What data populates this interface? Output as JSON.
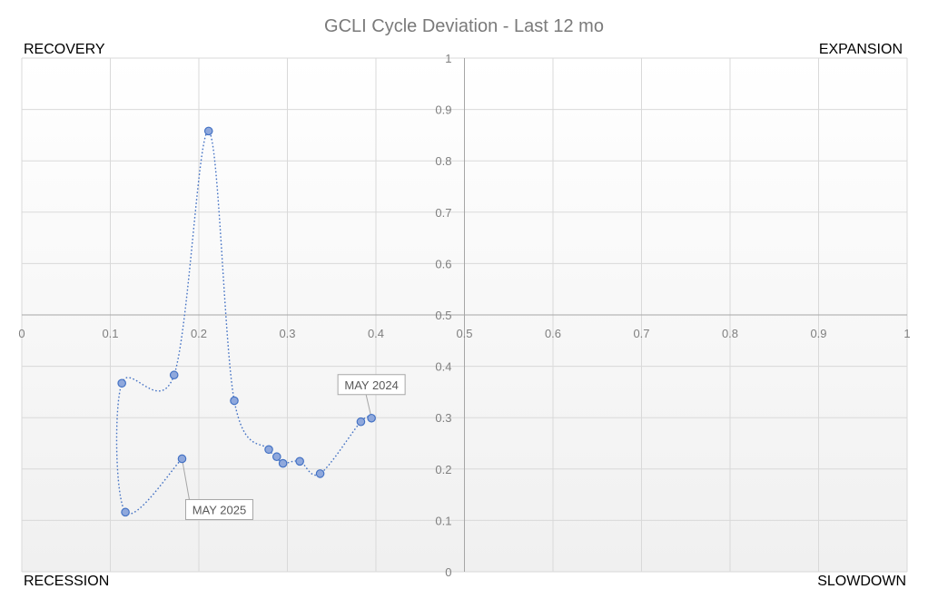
{
  "chart_data": {
    "type": "scatter",
    "title": "GCLI Cycle Deviation - Last 12 mo",
    "xlim": [
      0,
      1
    ],
    "ylim": [
      0,
      1
    ],
    "x_ticks": [
      "0",
      "0.1",
      "0.2",
      "0.3",
      "0.4",
      "0.5",
      "0.6",
      "0.7",
      "0.8",
      "0.9",
      "1"
    ],
    "y_ticks": [
      "0",
      "0.1",
      "0.2",
      "0.3",
      "0.4",
      "0.5",
      "0.6",
      "0.7",
      "0.8",
      "0.9",
      "1"
    ],
    "grid": true,
    "quadrants": {
      "top_left": "RECOVERY",
      "top_right": "EXPANSION",
      "bottom_left": "RECESSION",
      "bottom_right": "SLOWDOWN"
    },
    "series": [
      {
        "color": "#4472c4",
        "marker_fill": "#8fa8dc",
        "line_style": "dotted smooth",
        "x": [
          0.395,
          0.383,
          0.337,
          0.314,
          0.295,
          0.288,
          0.279,
          0.24,
          0.211,
          0.172,
          0.113,
          0.117,
          0.181
        ],
        "y": [
          0.299,
          0.292,
          0.191,
          0.215,
          0.211,
          0.224,
          0.238,
          0.333,
          0.858,
          0.383,
          0.367,
          0.116,
          0.22
        ]
      }
    ],
    "annotations": [
      {
        "text": "MAY 2024",
        "point_index": 0
      },
      {
        "text": "MAY 2025",
        "point_index": 12
      }
    ]
  }
}
